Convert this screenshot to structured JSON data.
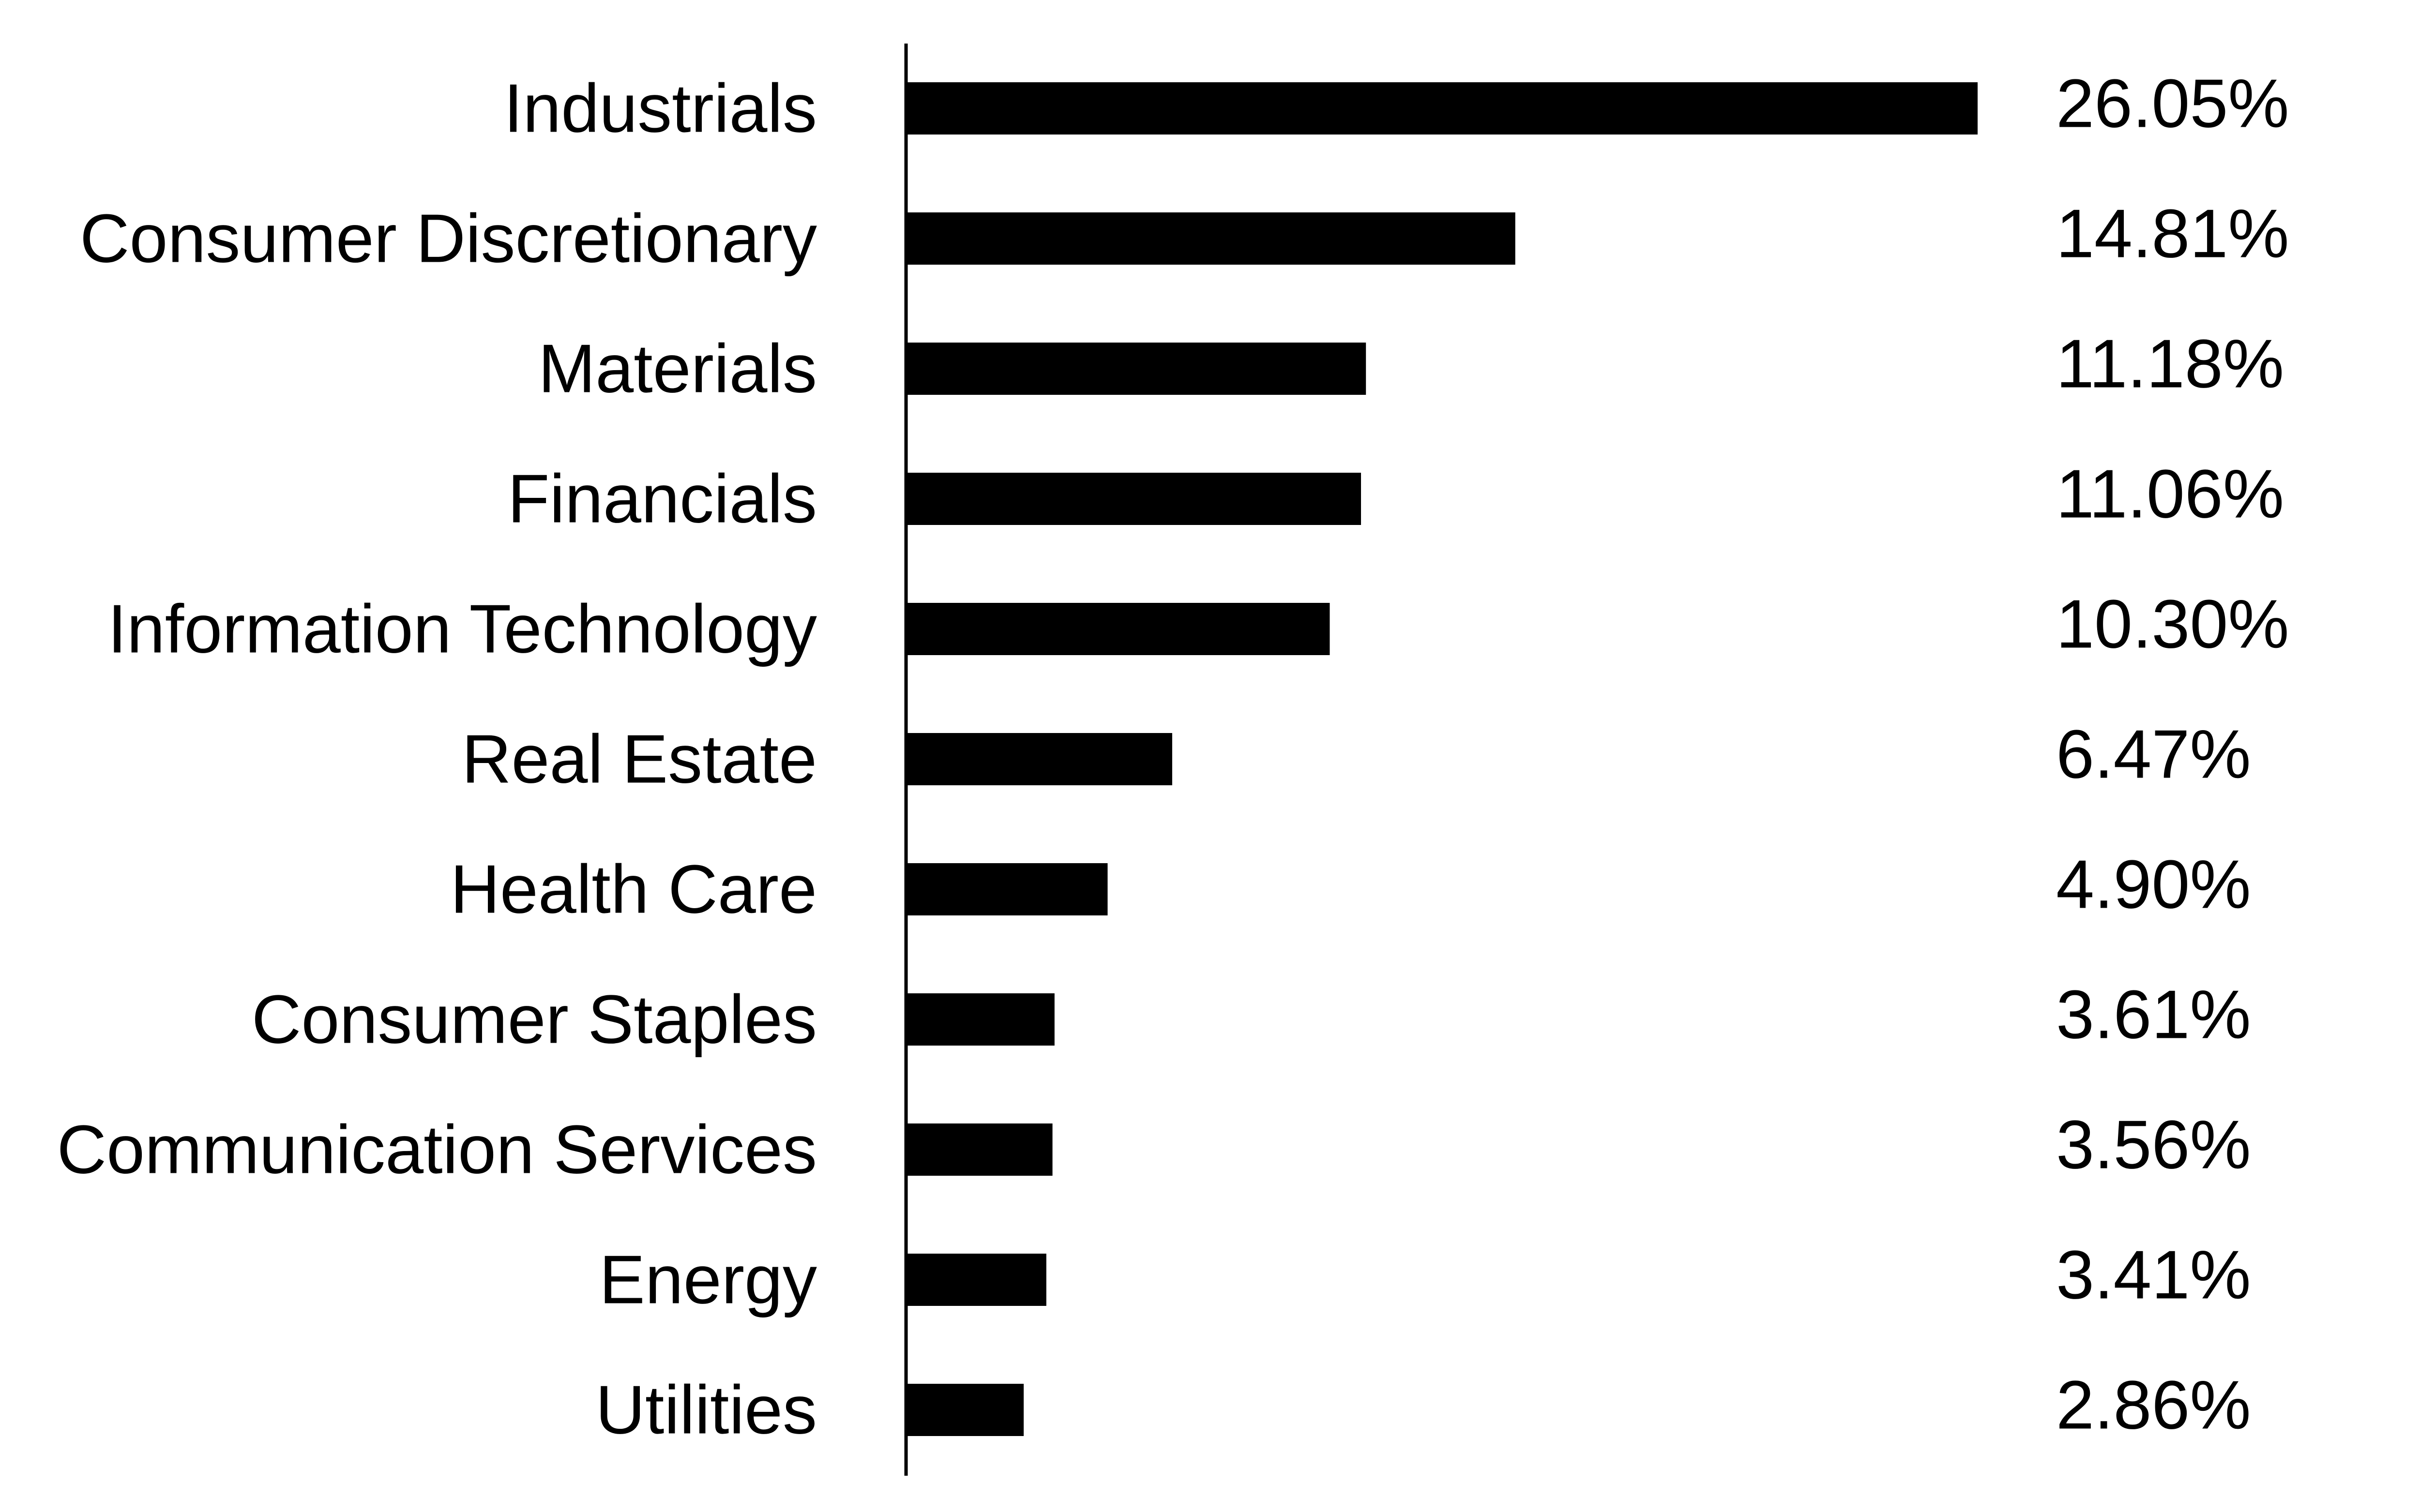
{
  "chart_data": {
    "type": "bar",
    "orientation": "horizontal",
    "title": "",
    "xlabel": "",
    "ylabel": "",
    "categories": [
      "Industrials",
      "Consumer Discretionary",
      "Materials",
      "Financials",
      "Information Technology",
      "Real Estate",
      "Health Care",
      "Consumer Staples",
      "Communication Services",
      "Energy",
      "Utilities"
    ],
    "values": [
      26.05,
      14.81,
      11.18,
      11.06,
      10.3,
      6.47,
      4.9,
      3.61,
      3.56,
      3.41,
      2.86
    ],
    "value_labels": [
      "26.05%",
      "14.81%",
      "11.18%",
      "11.06%",
      "10.30%",
      "6.47%",
      "4.90%",
      "3.61%",
      "3.56%",
      "3.41%",
      "2.86%"
    ],
    "xlim": [
      0,
      26.05
    ],
    "grid": false,
    "legend": "none",
    "bar_color": "#000000"
  }
}
